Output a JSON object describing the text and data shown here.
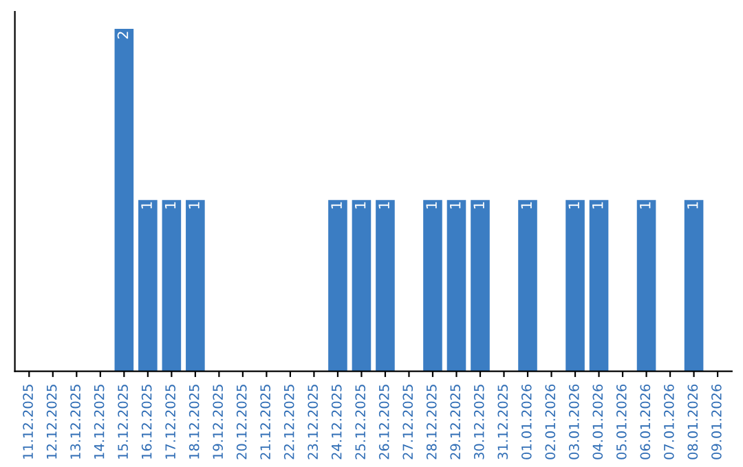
{
  "chart_data": {
    "type": "bar",
    "categories": [
      "11.12.2025",
      "12.12.2025",
      "13.12.2025",
      "14.12.2025",
      "15.12.2025",
      "16.12.2025",
      "17.12.2025",
      "18.12.2025",
      "19.12.2025",
      "20.12.2025",
      "21.12.2025",
      "22.12.2025",
      "23.12.2025",
      "24.12.2025",
      "25.12.2025",
      "26.12.2025",
      "27.12.2025",
      "28.12.2025",
      "29.12.2025",
      "30.12.2025",
      "31.12.2025",
      "01.01.2026",
      "02.01.2026",
      "03.01.2026",
      "04.01.2026",
      "05.01.2026",
      "06.01.2026",
      "07.01.2026",
      "08.01.2026",
      "09.01.2026"
    ],
    "values": [
      0,
      0,
      0,
      0,
      2,
      1,
      1,
      1,
      0,
      0,
      0,
      0,
      0,
      1,
      1,
      1,
      0,
      1,
      1,
      1,
      0,
      1,
      0,
      1,
      1,
      0,
      1,
      0,
      1,
      0
    ],
    "value_labels": [
      null,
      null,
      null,
      null,
      "2",
      "1",
      "1",
      "1",
      null,
      null,
      null,
      null,
      null,
      "1",
      "1",
      "1",
      null,
      "1",
      "1",
      "1",
      null,
      "1",
      null,
      "1",
      "1",
      null,
      "1",
      null,
      "1",
      null
    ],
    "color": "#3b7dc3",
    "tick_labels": "x",
    "grid": false
  }
}
